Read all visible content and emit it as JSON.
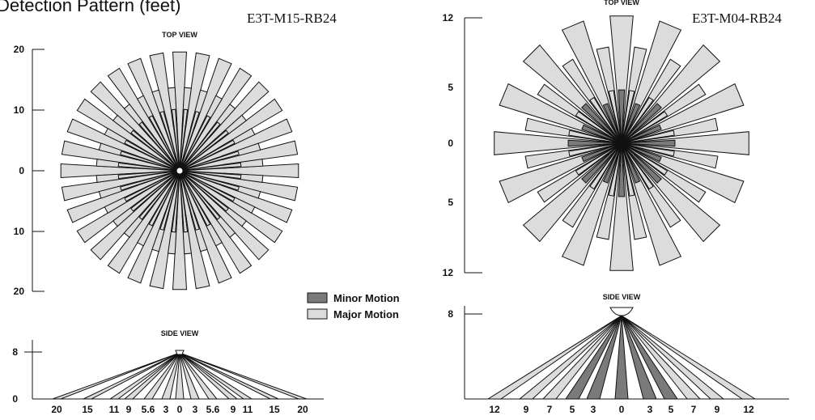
{
  "header_text": "Detection Pattern (feet)",
  "legend": {
    "minor": "Minor Motion",
    "major": "Major Motion",
    "colors": {
      "minor": "#7a7a7a",
      "major": "#dcdcdc"
    }
  },
  "left": {
    "model": "E3T-M15-RB24",
    "top_view": {
      "title": "TOP VIEW",
      "y_ticks": [
        "20",
        "10",
        "0",
        "10",
        "20"
      ]
    },
    "side_view": {
      "title": "SIDE VIEW",
      "y_ticks": [
        "8",
        "0"
      ],
      "x_ticks": [
        "20",
        "15",
        "11",
        "9",
        "5.6",
        "3",
        "0",
        "3",
        "5.6",
        "9",
        "11",
        "15",
        "20"
      ]
    }
  },
  "right": {
    "model": "E3T-M04-RB24",
    "top_view": {
      "title": "TOP VIEW",
      "y_ticks": [
        "12",
        "5",
        "0",
        "5",
        "12"
      ]
    },
    "side_view": {
      "title": "SIDE VIEW",
      "y_ticks": [
        "8"
      ],
      "x_ticks": [
        "12",
        "9",
        "7",
        "5",
        "3",
        "0",
        "3",
        "5",
        "7",
        "9",
        "12"
      ]
    }
  }
}
